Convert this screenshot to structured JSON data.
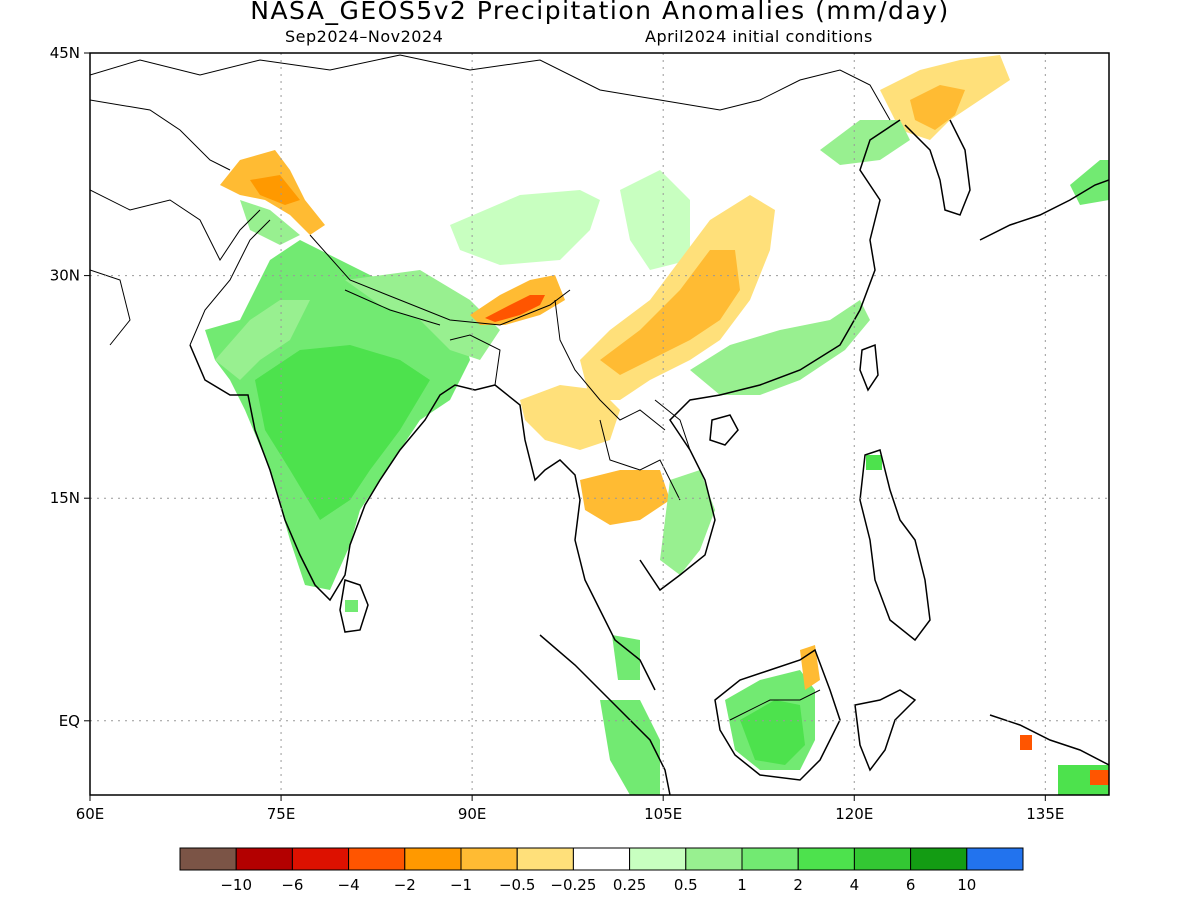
{
  "title": "NASA_GEOS5v2 Precipitation Anomalies (mm/day)",
  "subtitle_left": "Sep2024–Nov2024",
  "subtitle_right": "April2024 initial conditions",
  "map": {
    "lon_range": [
      60,
      140
    ],
    "lat_range": [
      -5,
      45
    ],
    "lon_ticks": [
      {
        "value": 60,
        "label": "60E"
      },
      {
        "value": 75,
        "label": "75E"
      },
      {
        "value": 90,
        "label": "90E"
      },
      {
        "value": 105,
        "label": "105E"
      },
      {
        "value": 120,
        "label": "120E"
      },
      {
        "value": 135,
        "label": "135E"
      }
    ],
    "lat_ticks": [
      {
        "value": 45,
        "label": "45N"
      },
      {
        "value": 30,
        "label": "30N"
      },
      {
        "value": 15,
        "label": "15N"
      },
      {
        "value": 0,
        "label": "EQ"
      }
    ],
    "gridlines": true
  },
  "colorbar": {
    "colors": [
      "#7b5446",
      "#b30000",
      "#dd1100",
      "#ff5500",
      "#ff9900",
      "#ffbb33",
      "#ffe07a",
      "#ffffff",
      "#c8ffc0",
      "#98f090",
      "#72ea72",
      "#4de24d",
      "#33c733",
      "#139c13",
      "#2273ee"
    ],
    "labels": [
      "−10",
      "−6",
      "−4",
      "−2",
      "−1",
      "−0.5",
      "−0.25",
      "0.25",
      "0.5",
      "1",
      "2",
      "4",
      "6",
      "10"
    ]
  }
}
